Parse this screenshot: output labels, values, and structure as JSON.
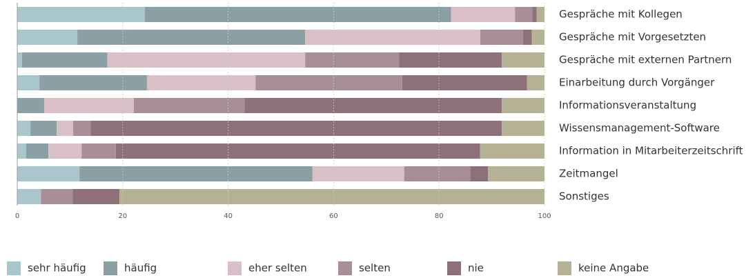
{
  "chart_data": {
    "type": "stacked-bar-horizontal",
    "categories": [
      "Gespräche mit Kollegen",
      "Gespräche mit Vorgesetzten",
      "Gespräche mit externen Partnern",
      "Einarbeitung durch Vorgänger",
      "Informationsveranstaltung",
      "Wissensmanagement-Software",
      "Information in Mitarbeiterzeitschrift",
      "Zeitmangel",
      "Sonstiges"
    ],
    "series": [
      {
        "name": "sehr häufig",
        "color": "#a9c6cc",
        "values": [
          24.2,
          11.4,
          0.9,
          4.2,
          0,
          2.5,
          1.7,
          11.8,
          4.5
        ]
      },
      {
        "name": "häufig",
        "color": "#8aa0a5",
        "values": [
          58.1,
          43.2,
          16.2,
          20.4,
          5.1,
          5.0,
          4.2,
          44.2,
          0
        ]
      },
      {
        "name": "eher selten",
        "color": "#d9c0c7",
        "values": [
          12.1,
          33.2,
          37.5,
          20.6,
          17.0,
          3.1,
          6.3,
          17.4,
          0
        ]
      },
      {
        "name": "selten",
        "color": "#a88f97",
        "values": [
          3.3,
          8.1,
          17.8,
          27.8,
          21.0,
          3.3,
          6.5,
          12.5,
          6.0
        ]
      },
      {
        "name": "nie",
        "color": "#8e7079",
        "values": [
          0.8,
          1.7,
          19.5,
          23.7,
          48.8,
          78.0,
          69.1,
          3.4,
          8.9
        ]
      },
      {
        "name": "keine Angabe",
        "color": "#b5b195",
        "values": [
          1.5,
          2.4,
          8.1,
          3.3,
          8.1,
          8.1,
          12.2,
          10.7,
          80.6
        ]
      }
    ],
    "xlim": [
      0,
      100
    ],
    "xticks": [
      0,
      20,
      40,
      60,
      80,
      100
    ],
    "grid": true
  }
}
